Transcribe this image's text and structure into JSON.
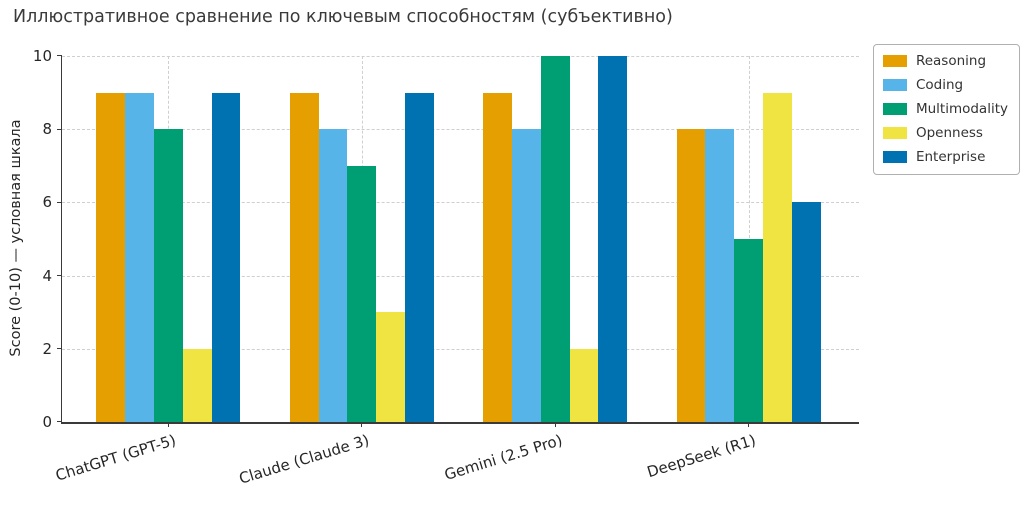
{
  "title": "Иллюстративное сравнение по ключевым способностям (субъективно)",
  "chart_data": {
    "type": "bar",
    "title": "Иллюстративное сравнение по ключевым способностям (субъективно)",
    "xlabel": "",
    "ylabel": "Score (0-10) — условная шкала",
    "categories": [
      "ChatGPT (GPT-5)",
      "Claude (Claude 3)",
      "Gemini (2.5 Pro)",
      "DeepSeek (R1)"
    ],
    "series": [
      {
        "name": "Reasoning",
        "color": "#E69F00",
        "values": [
          9,
          9,
          9,
          8
        ]
      },
      {
        "name": "Coding",
        "color": "#56B4E9",
        "values": [
          9,
          8,
          8,
          8
        ]
      },
      {
        "name": "Multimodality",
        "color": "#009E73",
        "values": [
          8,
          7,
          10,
          5
        ]
      },
      {
        "name": "Openness",
        "color": "#F0E442",
        "values": [
          2,
          3,
          2,
          9
        ]
      },
      {
        "name": "Enterprise",
        "color": "#0072B2",
        "values": [
          9,
          9,
          10,
          6
        ]
      }
    ],
    "ylim": [
      0,
      10
    ],
    "yticks": [
      0,
      2,
      4,
      6,
      8,
      10
    ],
    "grid": "dashed, both axes",
    "legend_position": "outside upper right"
  }
}
